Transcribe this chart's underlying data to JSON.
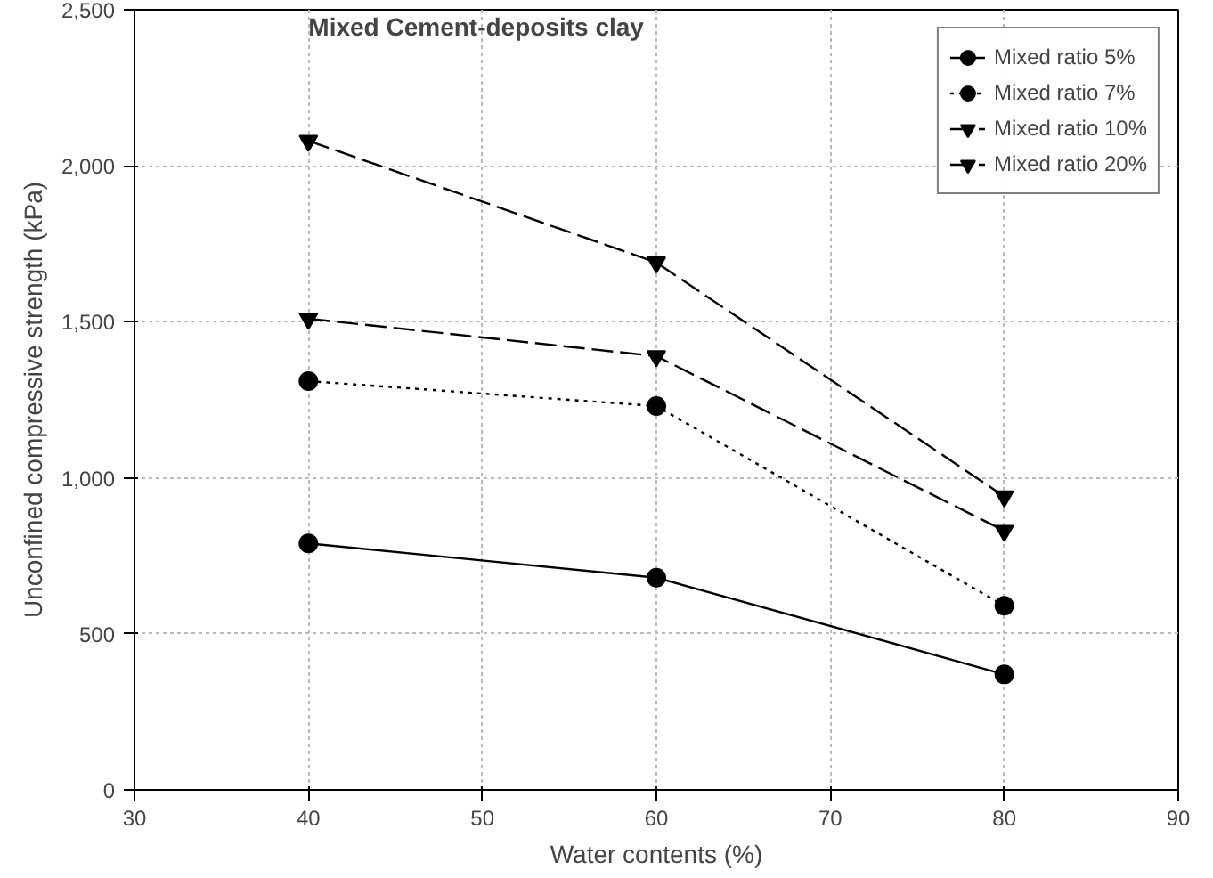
{
  "chart_data": {
    "type": "line",
    "title": "Mixed Cement-deposits clay",
    "xlabel": "Water contents (%)",
    "ylabel": "Unconfined compressive strength (kPa)",
    "x": [
      40,
      60,
      80
    ],
    "series": [
      {
        "name": "Mixed ratio 5%",
        "color": "#000000",
        "values": [
          790,
          680,
          370
        ],
        "marker": "circle",
        "line_style": "solid"
      },
      {
        "name": "Mixed ratio 7%",
        "color": "#000000",
        "values": [
          1310,
          1230,
          590
        ],
        "marker": "circle",
        "line_style": "dotted"
      },
      {
        "name": "Mixed ratio 10%",
        "color": "#000000",
        "values": [
          1510,
          1390,
          830
        ],
        "marker": "triangle",
        "line_style": "dashed"
      },
      {
        "name": "Mixed ratio 20%",
        "color": "#000000",
        "values": [
          2080,
          1690,
          940
        ],
        "marker": "triangle",
        "line_style": "dashed"
      }
    ],
    "xlim": [
      30,
      90
    ],
    "xticks": [
      30,
      40,
      50,
      60,
      70,
      80,
      90
    ],
    "ylim": [
      0,
      2500
    ],
    "yticks": [
      0,
      {
        "value": 500,
        "label": "500"
      },
      {
        "value": 1000,
        "label": "1,000"
      },
      {
        "value": 1500,
        "label": "1,500"
      },
      {
        "value": 2000,
        "label": "2,000"
      },
      {
        "value": 2500,
        "label": "2,500"
      }
    ],
    "grid": true,
    "legend": "top right"
  }
}
